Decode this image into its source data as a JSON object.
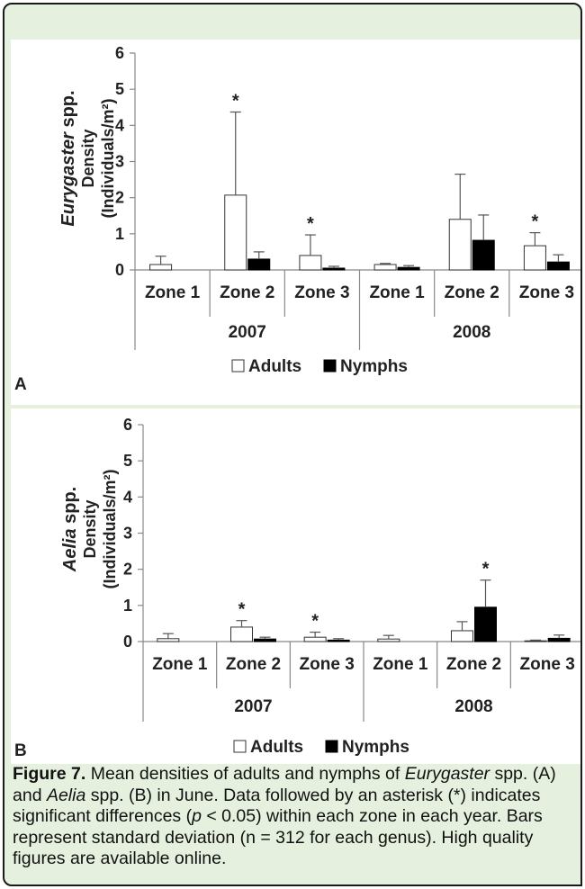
{
  "charts": {
    "A": {
      "panel_letter": "A",
      "ylabel_italic": "Eurygaster",
      "ylabel_rest": " spp.",
      "ylabel_line2": "Density",
      "ylabel_line3": "(Individuals/m²)",
      "legend": [
        "Adults",
        "Nymphs"
      ]
    },
    "B": {
      "panel_letter": "B",
      "ylabel_italic": "Aelia",
      "ylabel_rest": " spp.",
      "ylabel_line2": "Density",
      "ylabel_line3": "(Individuals/m²)",
      "legend": [
        "Adults",
        "Nymphs"
      ]
    }
  },
  "chart_data": [
    {
      "type": "bar",
      "panel": "A",
      "categories": [
        "Zone 1",
        "Zone 2",
        "Zone 3",
        "Zone 1",
        "Zone 2",
        "Zone 3"
      ],
      "groups": [
        "2007",
        "2008"
      ],
      "ylim": [
        0,
        6
      ],
      "yticks": [
        "0",
        "1",
        "2",
        "3",
        "4",
        "5",
        "6"
      ],
      "series": [
        {
          "name": "Adults",
          "color": "#ffffff",
          "values": [
            0.15,
            2.07,
            0.4,
            0.15,
            1.4,
            0.67
          ],
          "errors": [
            0.23,
            2.3,
            0.57,
            0.03,
            1.25,
            0.36
          ]
        },
        {
          "name": "Nymphs",
          "color": "#000000",
          "values": [
            0.0,
            0.3,
            0.05,
            0.07,
            0.82,
            0.22
          ],
          "errors": [
            0.0,
            0.2,
            0.05,
            0.05,
            0.7,
            0.2
          ]
        }
      ],
      "annotations": [
        {
          "category_index": 1,
          "series": "Adults",
          "text": "*"
        },
        {
          "category_index": 2,
          "series": "Adults",
          "text": "*"
        },
        {
          "category_index": 5,
          "series": "Adults",
          "text": "*"
        }
      ]
    },
    {
      "type": "bar",
      "panel": "B",
      "categories": [
        "Zone 1",
        "Zone 2",
        "Zone 3",
        "Zone 1",
        "Zone 2",
        "Zone 3"
      ],
      "groups": [
        "2007",
        "2008"
      ],
      "ylim": [
        0,
        6
      ],
      "yticks": [
        "0",
        "1",
        "2",
        "3",
        "4",
        "5",
        "6"
      ],
      "series": [
        {
          "name": "Adults",
          "color": "#ffffff",
          "values": [
            0.08,
            0.4,
            0.12,
            0.07,
            0.3,
            0.02
          ],
          "errors": [
            0.14,
            0.18,
            0.14,
            0.1,
            0.25,
            0.02
          ]
        },
        {
          "name": "Nymphs",
          "color": "#000000",
          "values": [
            0.0,
            0.07,
            0.04,
            0.0,
            0.95,
            0.09
          ],
          "errors": [
            0.0,
            0.05,
            0.04,
            0.0,
            0.75,
            0.09
          ]
        }
      ],
      "annotations": [
        {
          "category_index": 1,
          "series": "Adults",
          "text": "*"
        },
        {
          "category_index": 2,
          "series": "Adults",
          "text": "*"
        },
        {
          "category_index": 4,
          "series": "Nymphs",
          "text": "*"
        }
      ]
    }
  ],
  "caption": {
    "label": "Figure 7.",
    "t1": " Mean densities of adults and nymphs of ",
    "i1": "Eurygaster",
    "t2": " spp. (A) and ",
    "i2": "Aelia",
    "t3": " spp. (B) in June. Data followed by an asterisk (*) indicates significant differences (",
    "i3": "p",
    "t4": " < 0.05) within each zone in each year. Bars represent standard deviation (n = 312 for each genus). High quality figures are available online."
  },
  "colors": {
    "frame_bg": "#e5f1de",
    "border": "#1a1a1a",
    "axis": "#888888"
  }
}
